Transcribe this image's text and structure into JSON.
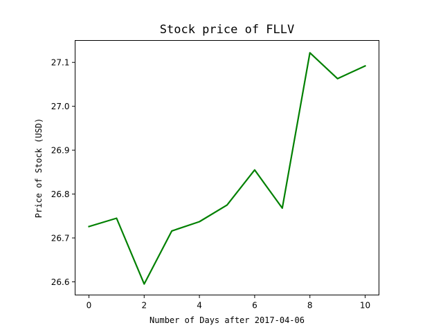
{
  "chart_data": {
    "type": "line",
    "title": "Stock price of FLLV",
    "xlabel": "Number of Days after 2017-04-06",
    "ylabel": "Price of Stock (USD)",
    "x": [
      0,
      1,
      2,
      3,
      4,
      5,
      6,
      7,
      8,
      9,
      10
    ],
    "series": [
      {
        "values": [
          26.726,
          26.745,
          26.595,
          26.716,
          26.737,
          26.775,
          26.855,
          26.768,
          27.122,
          27.063,
          27.092
        ],
        "color": "#008000"
      }
    ],
    "xlim": [
      -0.5,
      10.5
    ],
    "ylim": [
      26.57,
      27.15
    ],
    "xticks": [
      0,
      2,
      4,
      6,
      8,
      10
    ],
    "yticks": [
      26.6,
      26.7,
      26.8,
      26.9,
      27.0,
      27.1
    ],
    "ytick_labels": [
      "26.6",
      "26.7",
      "26.8",
      "26.9",
      "27.0",
      "27.1"
    ],
    "grid": false,
    "legend": "none"
  }
}
